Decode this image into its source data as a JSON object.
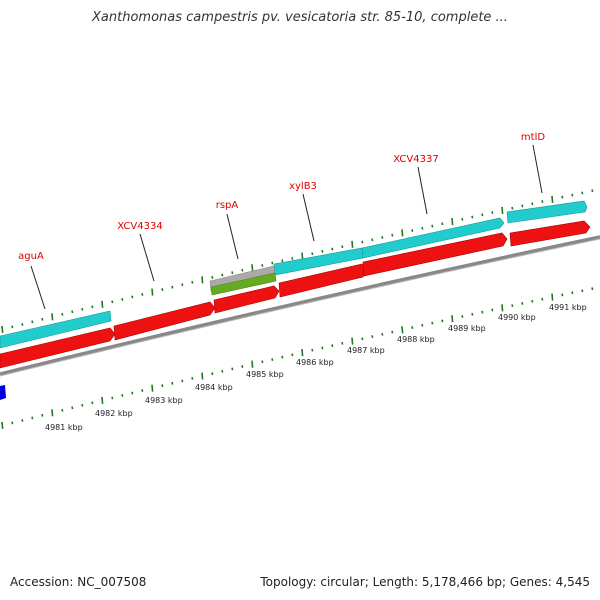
{
  "title": "Xanthomonas campestris pv. vesicatoria str. 85-10, complete ...",
  "footer": {
    "accession": "Accession: NC_007508",
    "topology": "Topology: circular; Length: 5,178,466 bp; Genes: 4,545"
  },
  "colors": {
    "cds": "#ee1111",
    "gene": "#22cccc",
    "other_gene": "#aaaaaa",
    "other_feature": "#66aa22",
    "backbone": "#888888",
    "ticks": "#227722",
    "label": "#e00000",
    "marker": "#0000dd"
  },
  "genes": [
    {
      "name": "aguA"
    },
    {
      "name": "XCV4334"
    },
    {
      "name": "rspA"
    },
    {
      "name": "xylB3"
    },
    {
      "name": "XCV4337"
    },
    {
      "name": "mtlD"
    }
  ],
  "kbp_labels": [
    "4981 kbp",
    "4982 kbp",
    "4983 kbp",
    "4984 kbp",
    "4985 kbp",
    "4986 kbp",
    "4987 kbp",
    "4988 kbp",
    "4989 kbp",
    "4990 kbp",
    "4991 kbp"
  ]
}
